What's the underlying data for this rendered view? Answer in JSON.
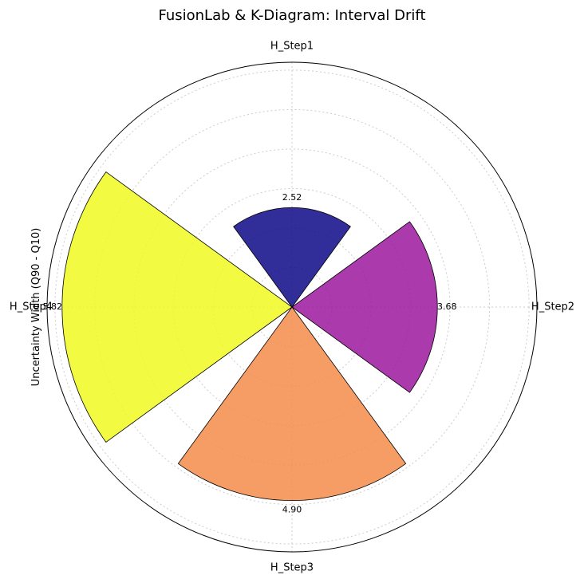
{
  "chart_data": {
    "type": "polar-bar",
    "title": "FusionLab & K-Diagram: Interval Drift",
    "ylabel": "Uncertainty Width (Q90 - Q10)",
    "categories": [
      "H_Step1",
      "H_Step2",
      "H_Step3",
      "H_Step4"
    ],
    "values": [
      2.52,
      3.68,
      4.9,
      5.82
    ],
    "value_labels": [
      "2.52",
      "3.68",
      "4.90",
      "5.82"
    ],
    "colors": [
      "#0d0887",
      "#9c179e",
      "#f48c4a",
      "#f0f921"
    ],
    "rlim": [
      0,
      6.2
    ],
    "direction": "clockwise",
    "zero_location": "top",
    "grid": true
  }
}
